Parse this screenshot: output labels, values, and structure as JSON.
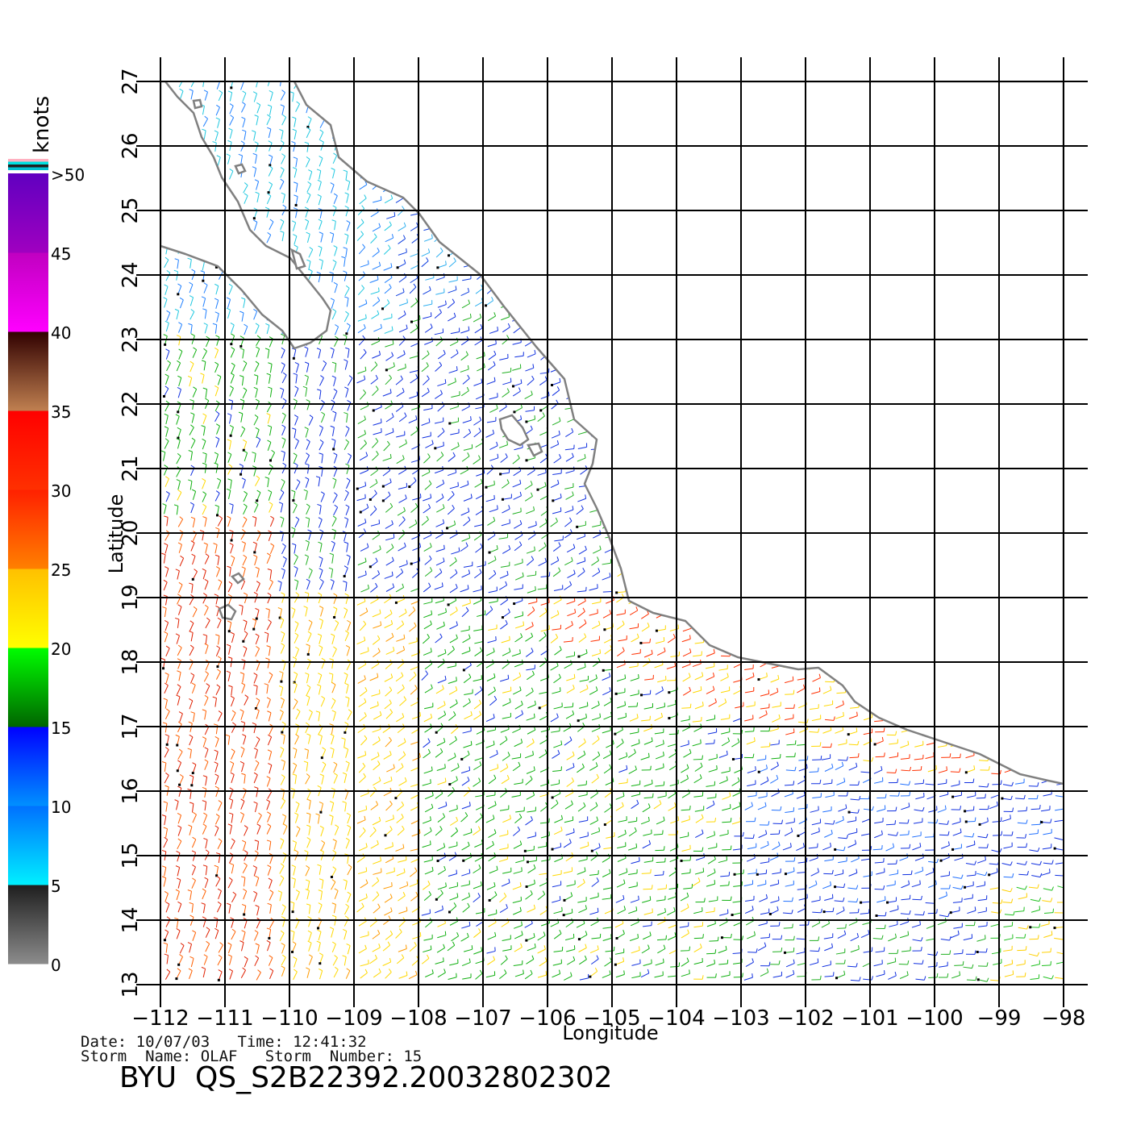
{
  "map": {
    "lon_range": [
      -112,
      -98
    ],
    "lat_range": [
      13,
      27
    ],
    "lon_ticks": [
      -112,
      -111,
      -110,
      -109,
      -108,
      -107,
      -106,
      -105,
      -104,
      -103,
      -102,
      -101,
      -100,
      -99,
      -98
    ],
    "lon_tick_labels": [
      "−112",
      "−111",
      "−110",
      "−109",
      "−108",
      "−107",
      "−106",
      "−105",
      "−104",
      "−103",
      "−102",
      "−101",
      "−100",
      "−99",
      "−98"
    ],
    "lat_ticks": [
      13,
      14,
      15,
      16,
      17,
      18,
      19,
      20,
      21,
      22,
      23,
      24,
      25,
      26,
      27
    ],
    "lat_tick_labels": [
      "13",
      "14",
      "15",
      "16",
      "17",
      "18",
      "19",
      "20",
      "21",
      "22",
      "23",
      "24",
      "25",
      "26",
      "27"
    ],
    "xlabel": "Longitude",
    "ylabel": "Latitude",
    "grid": true,
    "land_color": "#ffffff",
    "coast_color": "#808080",
    "barb_style": "wind barbs (short ticks), colour-coded by speed",
    "wind_regions": [
      {
        "area": "SW corner, -112 to -110, 13-20",
        "speed_class": "25-35 knots"
      },
      {
        "area": "-110 to -108, 13-19",
        "speed_class": "20-25 knots"
      },
      {
        "area": "-108 to -103, 13-19",
        "speed_class": "15-20 knots"
      },
      {
        "area": "-110 to -105, 19-23",
        "speed_class": "10-15 knots"
      },
      {
        "area": "Gulf of California and off Baja tip",
        "speed_class": "5-10 knots"
      },
      {
        "area": "-103 to -98, 14-16.5",
        "speed_class": "10-15 knots"
      },
      {
        "area": "near coast -106 to -101, 17-19",
        "speed_class": "20-30 knots"
      },
      {
        "area": "-99 to -98, 13-14.5",
        "speed_class": "20-25 knots"
      }
    ]
  },
  "colorbar": {
    "unit": "knots",
    "labels": [
      "0",
      "5",
      "10",
      "15",
      "20",
      "25",
      "30",
      "35",
      "40",
      "45",
      ">50"
    ],
    "segments": [
      {
        "from": 0,
        "to": 5,
        "colors": [
          "#8c8c8c",
          "#1e1e1e"
        ]
      },
      {
        "from": 5,
        "to": 10,
        "colors": [
          "#00f0ff",
          "#0070ff"
        ]
      },
      {
        "from": 10,
        "to": 15,
        "colors": [
          "#0090ff",
          "#0000ff"
        ]
      },
      {
        "from": 15,
        "to": 20,
        "colors": [
          "#006400",
          "#00ff00"
        ]
      },
      {
        "from": 20,
        "to": 25,
        "colors": [
          "#ffff00",
          "#ffc000"
        ]
      },
      {
        "from": 25,
        "to": 30,
        "colors": [
          "#ff8000",
          "#ff2000"
        ]
      },
      {
        "from": 30,
        "to": 35,
        "colors": [
          "#ff3000",
          "#ff0000"
        ]
      },
      {
        "from": 35,
        "to": 40,
        "colors": [
          "#c08050",
          "#300000"
        ]
      },
      {
        "from": 40,
        "to": 45,
        "colors": [
          "#ff00ff",
          "#c000c0"
        ]
      },
      {
        "from": 45,
        "to": 50,
        "colors": [
          "#a000c0",
          "#6000c0"
        ]
      }
    ],
    "top_stripes": [
      "#ffb0c0",
      "#00e0e0",
      "#202020",
      "#00c0d0"
    ]
  },
  "info": {
    "date_line": "Date: 10/07/03   Time: 12:41:32",
    "storm_line": "Storm  Name: OLAF   Storm  Number: 15",
    "product_id": "BYU  QS_S2B22392.20032802302"
  }
}
